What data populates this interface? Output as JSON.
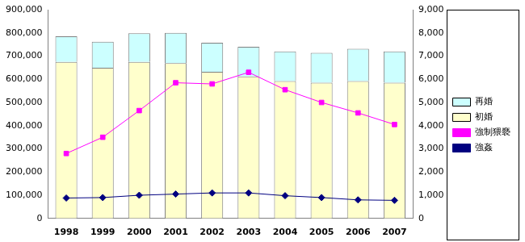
{
  "chart_data": {
    "type": "bar",
    "stacked": true,
    "grid": false,
    "legend": "right",
    "categories": [
      "1998",
      "1999",
      "2000",
      "2001",
      "2002",
      "2003",
      "2004",
      "2005",
      "2006",
      "2007"
    ],
    "series": [
      {
        "name": "初婚",
        "type": "bar",
        "color": "#ffffcc",
        "axis": "y",
        "values": [
          675000,
          650000,
          675000,
          670000,
          632000,
          612000,
          592000,
          585000,
          592000,
          585000
        ]
      },
      {
        "name": "再婚",
        "type": "bar",
        "color": "#ccffff",
        "axis": "y",
        "values": [
          110000,
          112000,
          123000,
          130000,
          125000,
          128000,
          128000,
          129000,
          139000,
          135000
        ]
      },
      {
        "name": "強制猥褻",
        "type": "line",
        "color": "#ff00ff",
        "marker": "square",
        "axis": "y2",
        "values": [
          2800,
          3500,
          4650,
          5850,
          5800,
          6300,
          5550,
          5000,
          4550,
          4050
        ]
      },
      {
        "name": "強姦",
        "type": "line",
        "color": "#000080",
        "marker": "diamond",
        "axis": "y2",
        "values": [
          880,
          900,
          1000,
          1050,
          1100,
          1100,
          980,
          900,
          800,
          780
        ]
      }
    ],
    "ylim": [
      0,
      900000
    ],
    "yticks": [
      0,
      {
        "value": 100000,
        "label": "100,000"
      },
      {
        "value": 200000,
        "label": "200,000"
      },
      {
        "value": 300000,
        "label": "300,000"
      },
      {
        "value": 400000,
        "label": "400,000"
      },
      {
        "value": 500000,
        "label": "500,000"
      },
      {
        "value": 600000,
        "label": "600,000"
      },
      {
        "value": 700000,
        "label": "700,000"
      },
      {
        "value": 800000,
        "label": "800,000"
      },
      {
        "value": 900000,
        "label": "900,000"
      }
    ],
    "y2lim": [
      0,
      9000
    ],
    "y2ticks": [
      0,
      {
        "value": 1000,
        "label": "1,000"
      },
      {
        "value": 2000,
        "label": "2,000"
      },
      {
        "value": 3000,
        "label": "3,000"
      },
      {
        "value": 4000,
        "label": "4,000"
      },
      {
        "value": 5000,
        "label": "5,000"
      },
      {
        "value": 6000,
        "label": "6,000"
      },
      {
        "value": 7000,
        "label": "7,000"
      },
      {
        "value": 8000,
        "label": "8,000"
      },
      {
        "value": 9000,
        "label": "9,000"
      }
    ]
  }
}
